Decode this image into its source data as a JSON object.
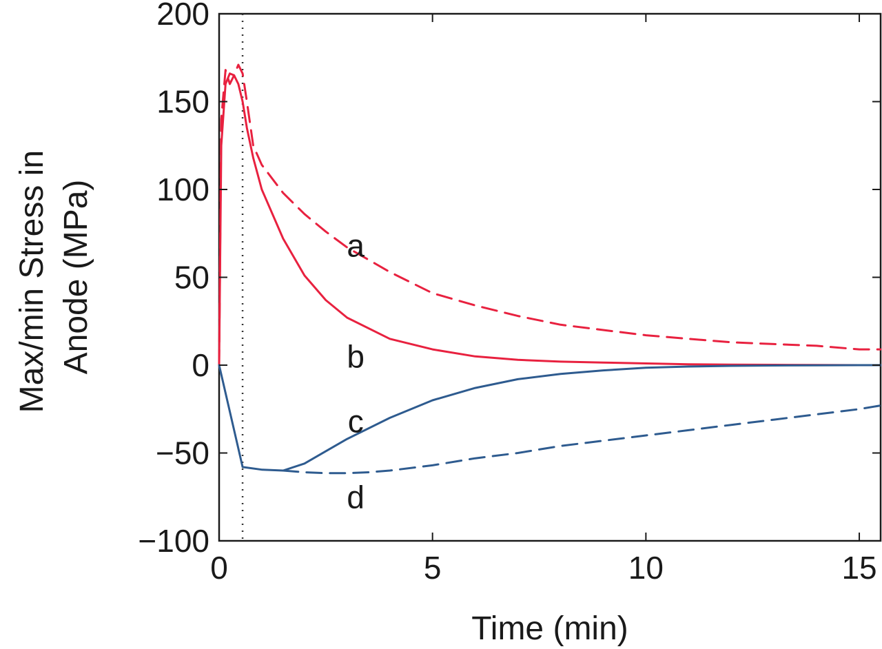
{
  "chart_data": {
    "type": "line",
    "title": "",
    "xlabel": "Time (min)",
    "ylabel_lines": [
      "Max/min Stress in",
      "Anode (MPa)"
    ],
    "xlim": [
      0,
      15.5
    ],
    "ylim": [
      -100,
      200
    ],
    "xticks": [
      0,
      5,
      10,
      15
    ],
    "yticks": [
      -100,
      -50,
      0,
      50,
      100,
      150,
      200
    ],
    "ytick_labels": [
      "−100",
      "−50",
      "0",
      "50",
      "100",
      "150",
      "200"
    ],
    "grid": false,
    "vertical_marker_x": 0.55,
    "series": [
      {
        "name": "a",
        "color": "#e8213f",
        "style": "dashed",
        "x": [
          0,
          0.05,
          0.15,
          0.25,
          0.35,
          0.45,
          0.55,
          0.65,
          0.8,
          1.0,
          1.5,
          2.0,
          2.5,
          3.0,
          4.0,
          5.0,
          6.0,
          7.0,
          8.0,
          9.0,
          10.0,
          11.0,
          12.0,
          13.0,
          14.0,
          15.0,
          15.5
        ],
        "y": [
          0,
          140,
          168,
          160,
          165,
          171,
          166,
          150,
          125,
          114,
          98,
          86,
          76,
          67,
          53,
          41,
          34,
          28,
          23,
          20,
          17,
          15,
          13,
          12,
          11,
          9,
          9
        ]
      },
      {
        "name": "b",
        "color": "#e8213f",
        "style": "solid",
        "x": [
          0,
          0.05,
          0.15,
          0.25,
          0.35,
          0.45,
          0.55,
          0.65,
          0.8,
          1.0,
          1.5,
          2.0,
          2.5,
          3.0,
          4.0,
          5.0,
          6.0,
          7.0,
          8.0,
          9.0,
          10.0,
          11.0,
          12.0,
          13.0,
          14.0,
          15.0,
          15.5
        ],
        "y": [
          0,
          125,
          160,
          166,
          165,
          160,
          150,
          135,
          118,
          100,
          72,
          51,
          37,
          27,
          15,
          9,
          5,
          3,
          2,
          1.5,
          1,
          0.5,
          0.3,
          0.2,
          0.1,
          0,
          0
        ]
      },
      {
        "name": "c",
        "color": "#2e5b8f",
        "style": "solid",
        "x": [
          0,
          0.55,
          1.0,
          1.5,
          2.0,
          2.5,
          3.0,
          4.0,
          5.0,
          6.0,
          7.0,
          8.0,
          9.0,
          10.0,
          11.0,
          12.0,
          13.0,
          14.0,
          15.0,
          15.5
        ],
        "y": [
          0,
          -58,
          -59.5,
          -60,
          -56,
          -49,
          -42,
          -30,
          -20,
          -13,
          -8,
          -5,
          -3,
          -1.5,
          -0.8,
          -0.4,
          -0.2,
          -0.1,
          0,
          0
        ]
      },
      {
        "name": "d",
        "color": "#2e5b8f",
        "style": "dashed",
        "x": [
          1.5,
          2.0,
          2.5,
          3.0,
          3.5,
          4.0,
          5.0,
          6.0,
          7.0,
          8.0,
          9.0,
          10.0,
          11.0,
          12.0,
          13.0,
          14.0,
          15.0,
          15.5
        ],
        "y": [
          -60,
          -61,
          -61.5,
          -61.5,
          -61,
          -60,
          -57,
          -53,
          -50,
          -46,
          -43,
          -40,
          -37,
          -34,
          -31,
          -28,
          -25,
          -23
        ]
      }
    ],
    "annotations": [
      {
        "text": "a",
        "x": 3.2,
        "y": 68
      },
      {
        "text": "b",
        "x": 3.2,
        "y": 5
      },
      {
        "text": "c",
        "x": 3.2,
        "y": -32
      },
      {
        "text": "d",
        "x": 3.2,
        "y": -75
      }
    ]
  }
}
